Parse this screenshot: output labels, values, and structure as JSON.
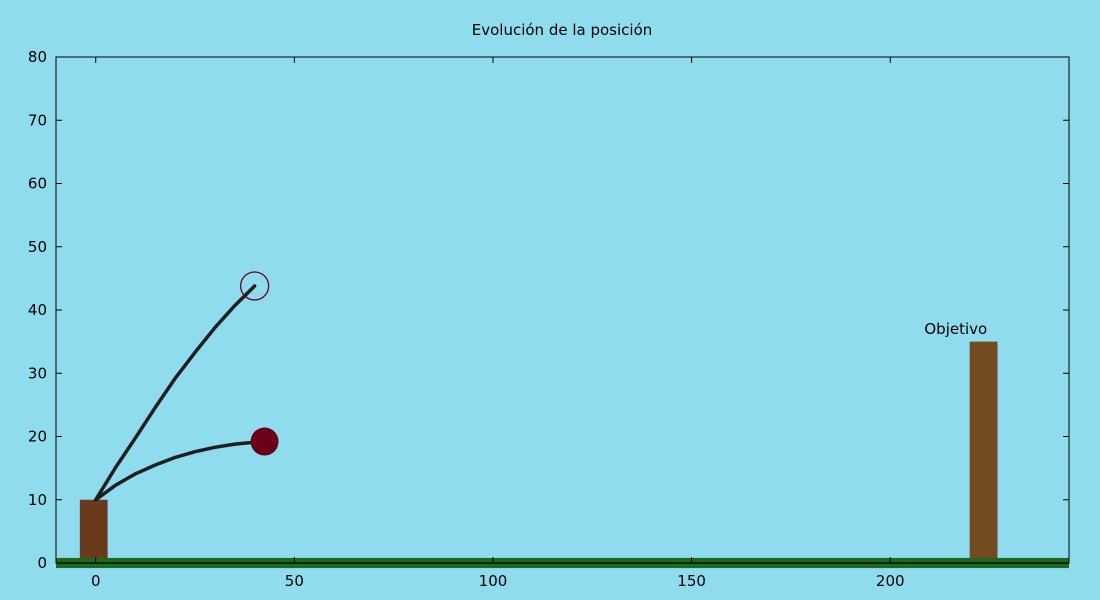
{
  "chart_data": {
    "type": "line",
    "title": "Evolución de la posición",
    "xlabel": "",
    "ylabel": "",
    "xlim": [
      -10,
      245
    ],
    "ylim": [
      0,
      80
    ],
    "xticks": [
      0,
      50,
      100,
      150,
      200
    ],
    "yticks": [
      0,
      10,
      20,
      30,
      40,
      50,
      60,
      70,
      80
    ],
    "grid": false,
    "colors": {
      "background": "#8fdcef",
      "trajectory": "#1e1e1e",
      "projectile": "#6b0018",
      "launch_tower": "#6a3a1f",
      "target_tower": "#734b22",
      "ground": "#1a6b1f",
      "frame": "#000000"
    },
    "series": [
      {
        "x": [
          0,
          5,
          10,
          15,
          20,
          25,
          30,
          35,
          40
        ],
        "y": [
          10,
          15.1,
          19.8,
          24.6,
          29.2,
          33.3,
          37.2,
          40.7,
          43.8
        ],
        "marker": "open-circle"
      },
      {
        "x": [
          0,
          5,
          10,
          15,
          20,
          25,
          30,
          35,
          40,
          42.5
        ],
        "y": [
          10,
          12.3,
          14.1,
          15.5,
          16.7,
          17.6,
          18.3,
          18.8,
          19.1,
          19.2
        ],
        "marker": "filled-circle"
      }
    ],
    "structures": [
      {
        "kind": "launch-tower",
        "x": [
          -4,
          3
        ],
        "y": [
          0,
          10
        ]
      },
      {
        "kind": "target-tower",
        "x": [
          220,
          227
        ],
        "y": [
          0,
          35
        ]
      },
      {
        "kind": "ground",
        "y": [
          -0.8,
          0.8
        ]
      }
    ],
    "annotations": [
      {
        "text": "Objetivo",
        "x": 216.5,
        "y": 37
      }
    ]
  }
}
